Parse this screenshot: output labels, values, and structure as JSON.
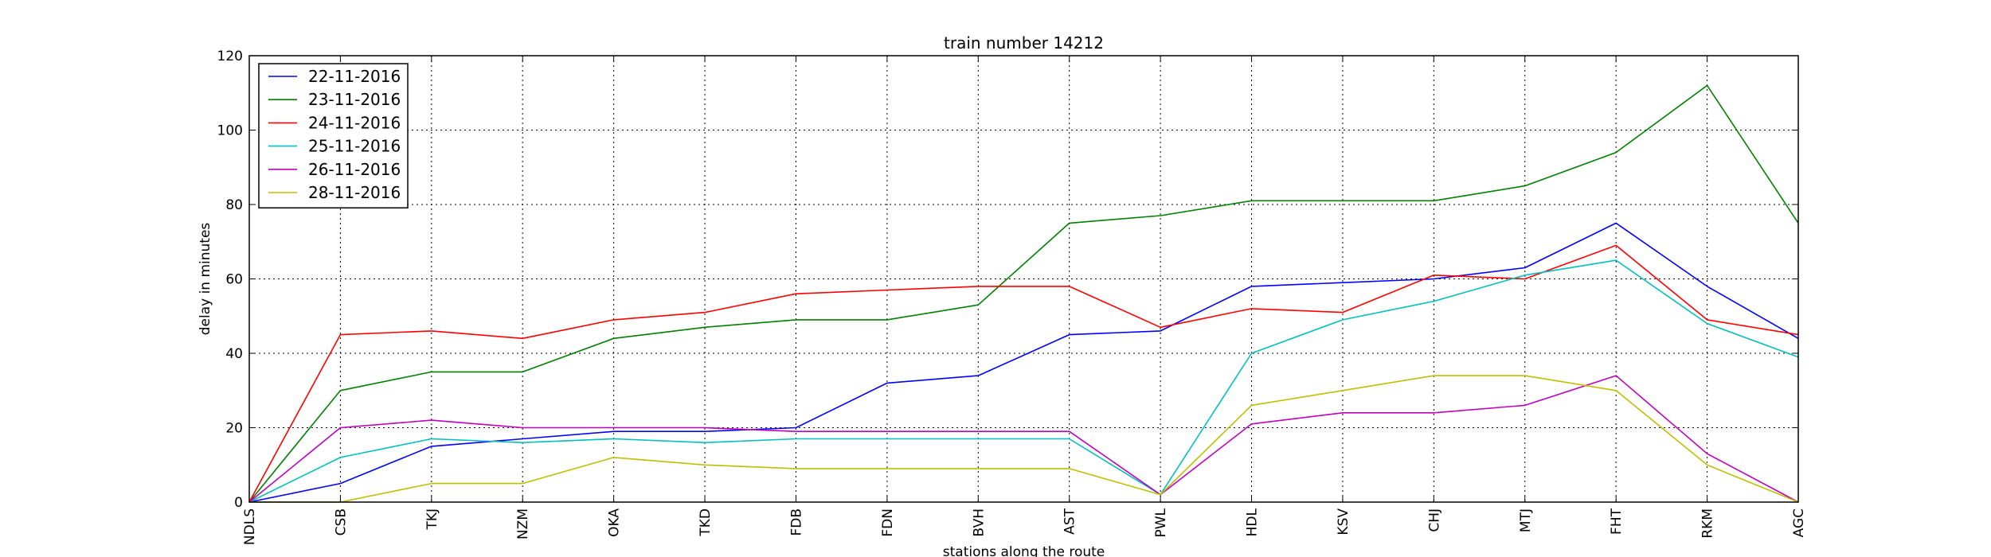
{
  "chart_data": {
    "type": "line",
    "title": "train number 14212",
    "xlabel": "stations along the route",
    "ylabel": "delay in minutes",
    "ylim": [
      0,
      120
    ],
    "yticks": [
      0,
      20,
      40,
      60,
      80,
      100,
      120
    ],
    "grid": true,
    "legend_position": "top-left",
    "categories": [
      "NDLS",
      "CSB",
      "TKJ",
      "NZM",
      "OKA",
      "TKD",
      "FDB",
      "FDN",
      "BVH",
      "AST",
      "PWL",
      "HDL",
      "KSV",
      "CHJ",
      "MTJ",
      "FHT",
      "RKM",
      "AGC"
    ],
    "series": [
      {
        "name": "22-11-2016",
        "color": "#0000ff",
        "values": [
          0,
          5,
          15,
          17,
          19,
          19,
          20,
          32,
          34,
          45,
          46,
          58,
          59,
          60,
          63,
          75,
          58,
          44
        ]
      },
      {
        "name": "23-11-2016",
        "color": "#008000",
        "values": [
          0,
          30,
          35,
          35,
          44,
          47,
          49,
          49,
          53,
          75,
          77,
          81,
          81,
          81,
          85,
          94,
          112,
          75
        ]
      },
      {
        "name": "24-11-2016",
        "color": "#ff0000",
        "values": [
          0,
          45,
          46,
          44,
          49,
          51,
          56,
          57,
          58,
          58,
          47,
          52,
          51,
          61,
          60,
          69,
          49,
          45
        ]
      },
      {
        "name": "25-11-2016",
        "color": "#00bfbf",
        "values": [
          0,
          12,
          17,
          16,
          17,
          16,
          17,
          17,
          17,
          17,
          2,
          40,
          49,
          54,
          61,
          65,
          48,
          39
        ]
      },
      {
        "name": "26-11-2016",
        "color": "#bf00bf",
        "values": [
          0,
          20,
          22,
          20,
          20,
          20,
          19,
          19,
          19,
          19,
          2,
          21,
          24,
          24,
          26,
          34,
          13,
          0
        ]
      },
      {
        "name": "28-11-2016",
        "color": "#bfbf00",
        "values": [
          0,
          0,
          5,
          5,
          12,
          10,
          9,
          9,
          9,
          9,
          2,
          26,
          30,
          34,
          34,
          30,
          10,
          0
        ]
      }
    ]
  }
}
